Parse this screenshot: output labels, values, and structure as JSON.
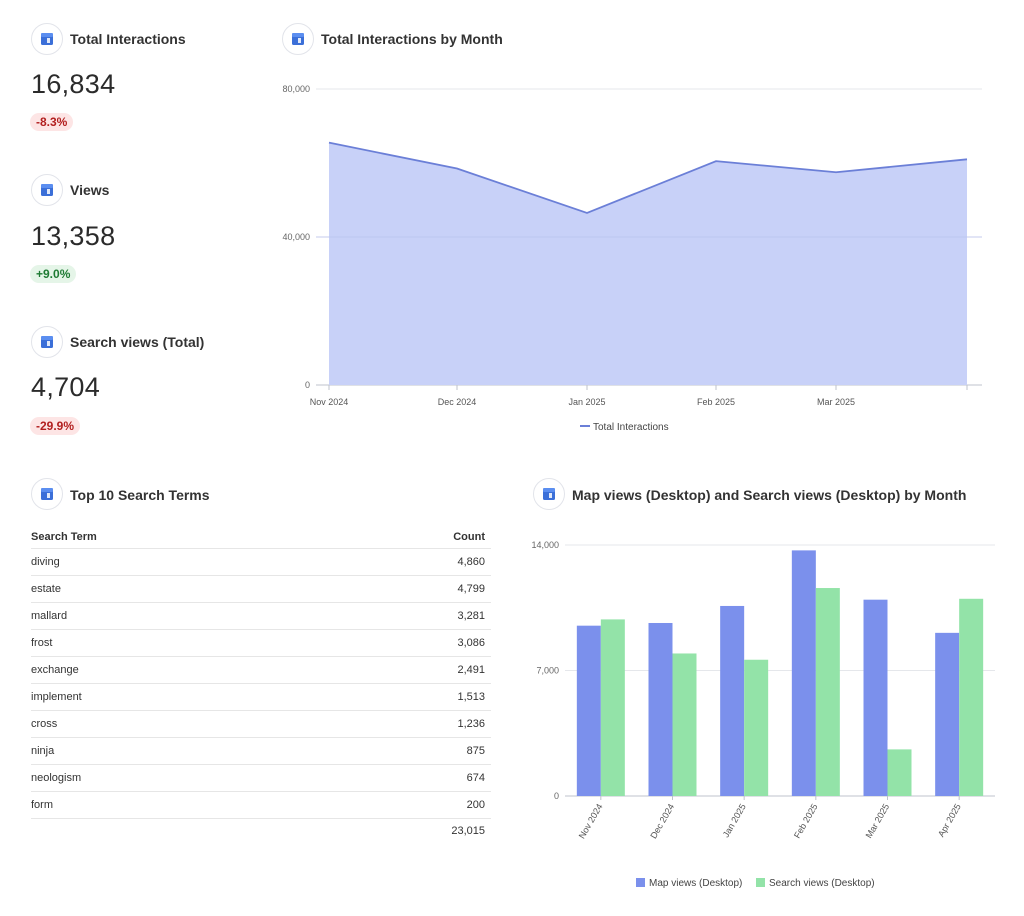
{
  "kpis": [
    {
      "title": "Total Interactions",
      "value": "16,834",
      "delta": "-8.3%",
      "trend": "negative"
    },
    {
      "title": "Views",
      "value": "13,358",
      "delta": "+9.0%",
      "trend": "positive"
    },
    {
      "title": "Search views (Total)",
      "value": "4,704",
      "delta": "-29.9%",
      "trend": "negative"
    }
  ],
  "area_chart": {
    "title": "Total Interactions by Month"
  },
  "search_terms": {
    "title": "Top 10 Search Terms",
    "col_term": "Search Term",
    "col_count": "Count",
    "rows": [
      {
        "term": "diving",
        "count": "4,860"
      },
      {
        "term": "estate",
        "count": "4,799"
      },
      {
        "term": "mallard",
        "count": "3,281"
      },
      {
        "term": "frost",
        "count": "3,086"
      },
      {
        "term": "exchange",
        "count": "2,491"
      },
      {
        "term": "implement",
        "count": "1,513"
      },
      {
        "term": "cross",
        "count": "1,236"
      },
      {
        "term": "ninja",
        "count": "875"
      },
      {
        "term": "neologism",
        "count": "674"
      },
      {
        "term": "form",
        "count": "200"
      }
    ],
    "total": "23,015"
  },
  "bar_chart": {
    "title": "Map views (Desktop) and Search views (Desktop) by Month"
  },
  "icon": "google-business-profile-icon",
  "colors": {
    "area_fill": "#c8d1f8",
    "area_line": "#6b7fd7",
    "bar_map": "#7b90ec",
    "bar_search": "#93e3a8"
  },
  "chart_data": [
    {
      "type": "area",
      "title": "Total Interactions by Month",
      "categories": [
        "Nov 2024",
        "Dec 2024",
        "Jan 2025",
        "Feb 2025",
        "Mar 2025",
        ""
      ],
      "series": [
        {
          "name": "Total Interactions",
          "values": [
            65500,
            58500,
            46500,
            60500,
            57500,
            61000
          ]
        }
      ],
      "yticks": [
        "80,000",
        "40,000",
        "0"
      ],
      "ylim": [
        0,
        80000
      ],
      "grid": true,
      "legend": "bottom"
    },
    {
      "type": "bar",
      "title": "Map views (Desktop) and Search views (Desktop) by Month",
      "categories": [
        "Nov 2024",
        "Dec 2024",
        "Jan 2025",
        "Feb 2025",
        "Mar 2025",
        "Apr 2025"
      ],
      "series": [
        {
          "name": "Map views (Desktop)",
          "values": [
            9500,
            9650,
            10600,
            13700,
            10950,
            9100
          ]
        },
        {
          "name": "Search views (Desktop)",
          "values": [
            9850,
            7950,
            7600,
            11600,
            2600,
            11000
          ]
        }
      ],
      "yticks": [
        "14,000",
        "7,000",
        "0"
      ],
      "ylim": [
        0,
        14000
      ],
      "grid": true,
      "legend": "bottom"
    }
  ]
}
